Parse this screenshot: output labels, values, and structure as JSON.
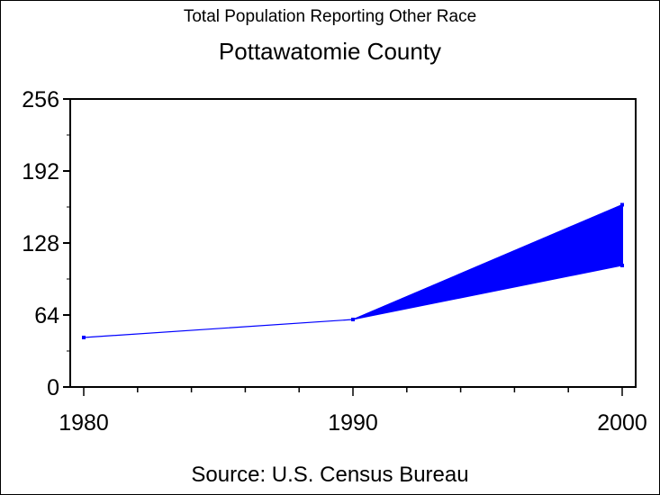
{
  "chart_data": {
    "type": "line",
    "title": "Total Population Reporting Other Race",
    "subtitle": "Pottawatomie County",
    "footnote": "Source: U.S. Census Bureau",
    "xlabel": "",
    "ylabel": "",
    "x": [
      1980,
      1990,
      2000
    ],
    "series": [
      {
        "values": [
          44,
          60,
          162
        ]
      }
    ],
    "band": {
      "x": [
        1990,
        2000
      ],
      "upper": [
        60,
        162
      ],
      "lower": [
        60,
        108
      ]
    },
    "xlim": [
      1978.5,
      2000.5
    ],
    "ylim": [
      0,
      256
    ],
    "x_ticks": [
      "1980",
      "1990",
      "2000"
    ],
    "y_ticks": [
      "0",
      "64",
      "128",
      "192",
      "256"
    ],
    "x_minor_step": 2,
    "y_minor_step": 32,
    "grid": false,
    "color": "#0000ff"
  }
}
